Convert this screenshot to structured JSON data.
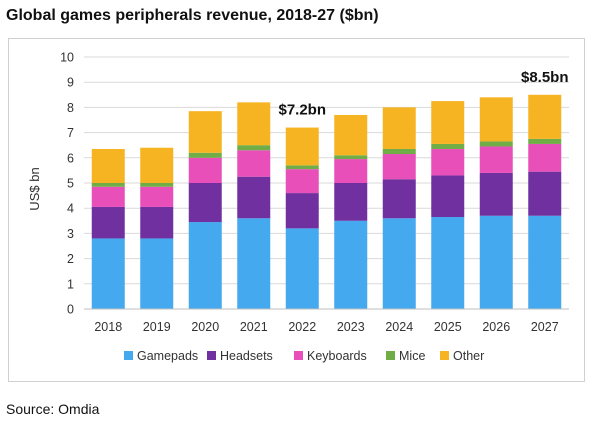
{
  "title": "Global games peripherals revenue, 2018-27 ($bn)",
  "source": "Source: Omdia",
  "chart_data": {
    "type": "bar",
    "stacked": true,
    "title": "Global games peripherals revenue, 2018-27 ($bn)",
    "xlabel": "",
    "ylabel": "US$ bn",
    "ylim": [
      0,
      10
    ],
    "yticks": [
      0,
      1,
      2,
      3,
      4,
      5,
      6,
      7,
      8,
      9,
      10
    ],
    "grid": true,
    "legend_position": "bottom",
    "categories": [
      "2018",
      "2019",
      "2020",
      "2021",
      "2022",
      "2023",
      "2024",
      "2025",
      "2026",
      "2027"
    ],
    "series": [
      {
        "name": "Gamepads",
        "color": "#44a9ef",
        "values": [
          2.8,
          2.8,
          3.45,
          3.6,
          3.2,
          3.5,
          3.6,
          3.65,
          3.7,
          3.7
        ]
      },
      {
        "name": "Headsets",
        "color": "#7030a0",
        "values": [
          1.25,
          1.25,
          1.55,
          1.65,
          1.4,
          1.5,
          1.55,
          1.65,
          1.7,
          1.75
        ]
      },
      {
        "name": "Keyboards",
        "color": "#e84fb8",
        "values": [
          0.8,
          0.8,
          1.0,
          1.05,
          0.95,
          0.95,
          1.0,
          1.05,
          1.05,
          1.1
        ]
      },
      {
        "name": "Mice",
        "color": "#70ad47",
        "values": [
          0.15,
          0.15,
          0.2,
          0.2,
          0.15,
          0.15,
          0.2,
          0.2,
          0.2,
          0.2
        ]
      },
      {
        "name": "Other",
        "color": "#f6b322",
        "values": [
          1.35,
          1.4,
          1.65,
          1.7,
          1.5,
          1.6,
          1.65,
          1.7,
          1.75,
          1.75
        ]
      }
    ],
    "annotations": [
      {
        "text": "$7.2bn",
        "category": "2022"
      },
      {
        "text": "$8.5bn",
        "category": "2027"
      }
    ]
  }
}
